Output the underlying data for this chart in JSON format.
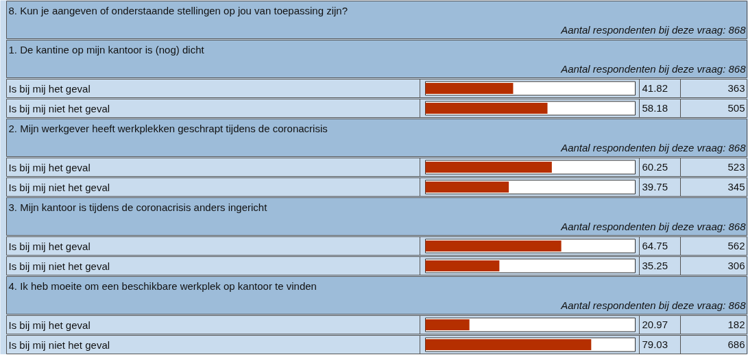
{
  "chart_data": {
    "type": "bar",
    "orientation": "horizontal",
    "title": "8. Kun je aangeven of onderstaande stellingen op jou van toepassing zijn?",
    "subtitle": "Aantal respondenten bij deze vraag: 868",
    "categories": [
      "Is bij mij het geval",
      "Is bij mij niet het geval",
      "Is bij mij het geval",
      "Is bij mij niet het geval",
      "Is bij mij het geval",
      "Is bij mij niet het geval",
      "Is bij mij het geval",
      "Is bij mij niet het geval"
    ],
    "values": [
      41.82,
      58.18,
      60.25,
      39.75,
      64.75,
      35.25,
      20.97,
      79.03
    ],
    "color": "#b52f00",
    "xlim": [
      0,
      100
    ],
    "tick_labels": false,
    "data_labels": true,
    "annotations": [
      "1. De kantine op mijn kantoor is (nog) dicht",
      "Aantal respondenten bij deze vraag: 868",
      "2. Mijn werkgever heeft werkplekken geschrapt tijdens de coronacrisis",
      "Aantal respondenten bij deze vraag: 868",
      "3. Mijn kantoor is tijdens de coronacrisis anders ingericht",
      "Aantal respondenten bij deze vraag: 868",
      "4. Ik heb moeite om een beschikbare werkplek op kantoor te vinden",
      "Aantal respondenten bij deze vraag: 868",
      "363",
      "505",
      "523",
      "345",
      "562",
      "306",
      "182",
      "686"
    ]
  }
}
